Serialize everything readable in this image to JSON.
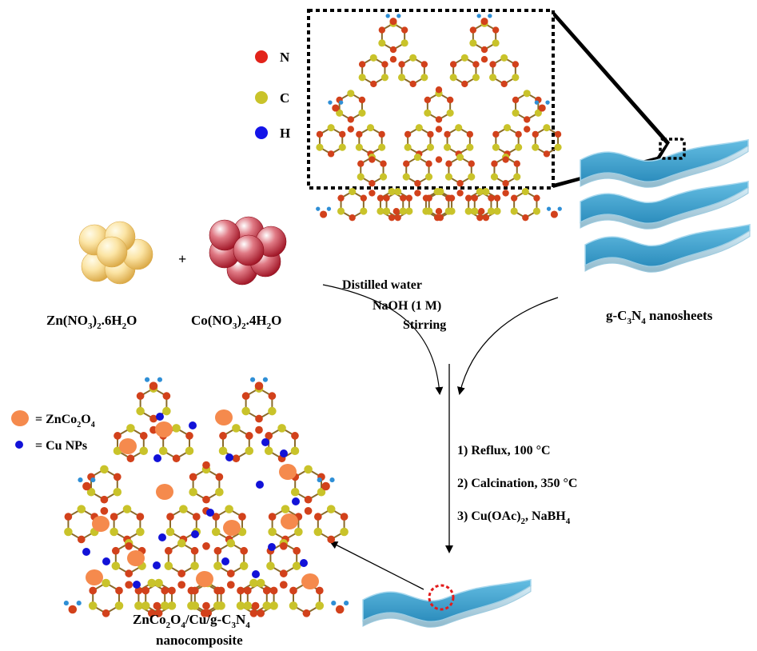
{
  "legend_top": {
    "items": [
      {
        "label": "N",
        "color": "#e2231a"
      },
      {
        "label": "C",
        "color": "#c9c32a"
      },
      {
        "label": "H",
        "color": "#1414e8"
      }
    ]
  },
  "precursors": {
    "zn_salt": "Zn(NO3)2.6H2O",
    "plus": "+",
    "co_salt": "Co(NO3)2.4H2O"
  },
  "conditions": {
    "line1": "Distilled water",
    "line2": "NaOH (1 M)",
    "line3": "Stirring"
  },
  "nanosheets_label": "g-C3N4 nanosheets",
  "steps": [
    "1) Reflux, 100 °C",
    "2) Calcination, 350 °C",
    "3) Cu(OAc)2, NaBH4"
  ],
  "legend_bottom": {
    "items": [
      {
        "label": "= ZnCo2O4",
        "color": "#f58a4d"
      },
      {
        "label": "= Cu NPs",
        "color": "#1212d8"
      }
    ]
  },
  "product": {
    "line1": "ZnCo2O4/Cu/g-C3N4",
    "line2": "nanocomposite"
  }
}
